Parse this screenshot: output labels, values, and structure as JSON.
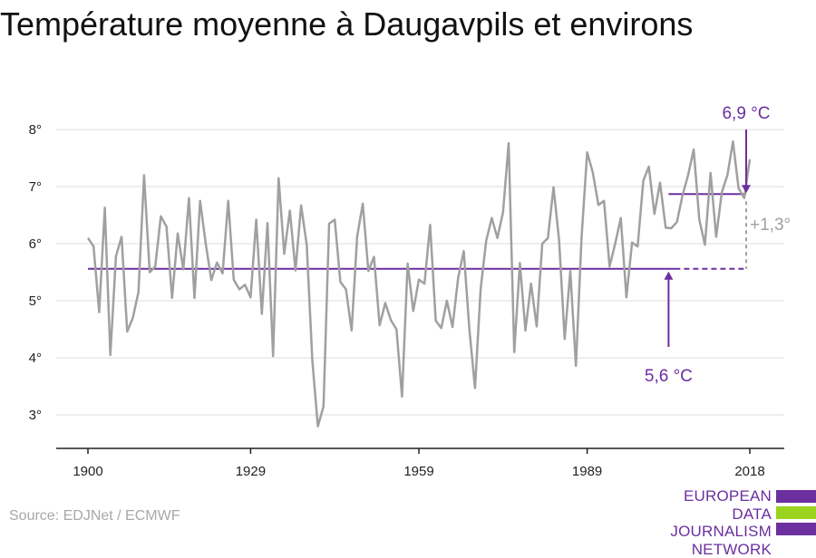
{
  "title": "Température moyenne à Daugavpils et environs",
  "source": "Source: EDJNet / ECMWF",
  "logo": {
    "lines": [
      "EUROPEAN",
      "DATA JOURNALISM",
      "NETWORK"
    ]
  },
  "colors": {
    "series": "#a0a0a0",
    "accent": "#6b2fa0",
    "grid": "#dddddd",
    "logo_green": "#9bd31f"
  },
  "chart_data": {
    "type": "line",
    "title": "Température moyenne à Daugavpils et environs",
    "xlabel": "",
    "ylabel": "",
    "xlim": [
      1900,
      2018
    ],
    "ylim": [
      2.4,
      8.8
    ],
    "x_ticks": [
      1900,
      1929,
      1959,
      1989,
      2018
    ],
    "x_tick_labels": [
      "1900",
      "1929",
      "1959",
      "1989",
      "2018"
    ],
    "y_ticks": [
      3,
      4,
      5,
      6,
      7,
      8
    ],
    "y_tick_labels": [
      "3°",
      "4°",
      "5°",
      "6°",
      "7°",
      "8°"
    ],
    "grid": "horizontal",
    "x": [
      1900,
      1901,
      1902,
      1903,
      1904,
      1905,
      1906,
      1907,
      1908,
      1909,
      1910,
      1911,
      1912,
      1913,
      1914,
      1915,
      1916,
      1917,
      1918,
      1919,
      1920,
      1921,
      1922,
      1923,
      1924,
      1925,
      1926,
      1927,
      1928,
      1929,
      1930,
      1931,
      1932,
      1933,
      1934,
      1935,
      1936,
      1937,
      1938,
      1939,
      1940,
      1941,
      1942,
      1943,
      1944,
      1945,
      1946,
      1947,
      1948,
      1949,
      1950,
      1951,
      1952,
      1953,
      1954,
      1955,
      1956,
      1957,
      1958,
      1959,
      1960,
      1961,
      1962,
      1963,
      1964,
      1965,
      1966,
      1967,
      1968,
      1969,
      1970,
      1971,
      1972,
      1973,
      1974,
      1975,
      1976,
      1977,
      1978,
      1979,
      1980,
      1981,
      1982,
      1983,
      1984,
      1985,
      1986,
      1987,
      1988,
      1989,
      1990,
      1991,
      1992,
      1993,
      1994,
      1995,
      1996,
      1997,
      1998,
      1999,
      2000,
      2001,
      2002,
      2003,
      2004,
      2005,
      2006,
      2007,
      2008,
      2009,
      2010,
      2011,
      2012,
      2013,
      2014,
      2015,
      2016,
      2017,
      2018
    ],
    "series": [
      {
        "values": [
          6.1,
          5.95,
          4.8,
          6.63,
          4.05,
          5.78,
          6.12,
          4.46,
          4.7,
          5.15,
          7.2,
          5.5,
          5.6,
          6.48,
          6.3,
          5.05,
          6.18,
          5.55,
          6.8,
          5.05,
          6.75,
          6.0,
          5.36,
          5.67,
          5.48,
          6.75,
          5.37,
          5.2,
          5.28,
          5.06,
          6.42,
          4.77,
          6.36,
          4.03,
          7.15,
          5.82,
          6.58,
          5.53,
          6.67,
          5.98,
          3.95,
          2.8,
          3.15,
          6.35,
          6.42,
          5.33,
          5.2,
          4.48,
          6.12,
          6.7,
          5.52,
          5.77,
          4.57,
          4.96,
          4.66,
          4.5,
          3.32,
          5.65,
          4.82,
          5.37,
          5.3,
          6.33,
          4.65,
          4.52,
          5.0,
          4.54,
          5.4,
          5.87,
          4.5,
          3.47,
          5.2,
          6.05,
          6.45,
          6.1,
          6.55,
          7.76,
          4.1,
          5.66,
          4.48,
          5.3,
          4.55,
          6.0,
          6.1,
          6.99,
          6.05,
          4.33,
          5.52,
          3.86,
          6.1,
          7.6,
          7.25,
          6.68,
          6.75,
          5.6,
          6.0,
          6.45,
          5.06,
          6.02,
          5.95,
          7.1,
          7.35,
          6.52,
          7.07,
          6.28,
          6.27,
          6.38,
          6.85,
          7.2,
          7.65,
          6.42,
          5.98,
          7.24,
          6.12,
          6.9,
          7.2,
          7.79,
          6.97,
          6.8,
          7.48
        ]
      }
    ],
    "baseline": {
      "label": "5,6 °C",
      "value": 5.56,
      "x_start": 1900,
      "x_end": 2004
    },
    "recent": {
      "label": "6,9 °C",
      "value": 6.87,
      "x_start": 2004,
      "x_end": 2018
    },
    "difference_label": "+1,3°"
  }
}
